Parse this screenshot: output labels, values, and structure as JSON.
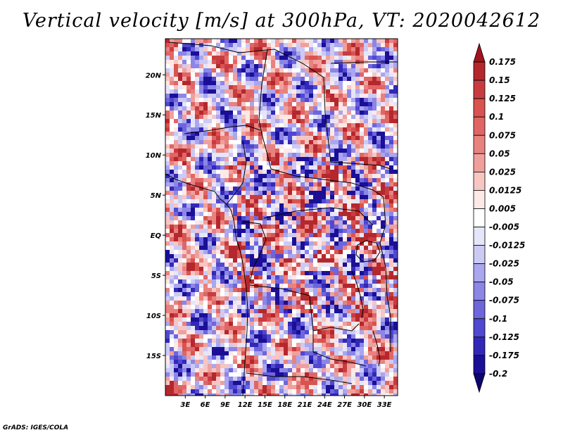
{
  "title": "Vertical velocity [m/s] at 300hPa, VT: 2020042612",
  "map": {
    "variable": "Vertical velocity",
    "units": "m/s",
    "level": "300hPa",
    "valid_time": "2020042612",
    "lon_range": [
      0,
      35
    ],
    "lat_range": [
      -20,
      24.5
    ],
    "lon_ticks": [
      "3E",
      "6E",
      "9E",
      "12E",
      "15E",
      "18E",
      "21E",
      "24E",
      "27E",
      "30E",
      "33E"
    ],
    "lon_tick_values": [
      3,
      6,
      9,
      12,
      15,
      18,
      21,
      24,
      27,
      30,
      33
    ],
    "lat_ticks": [
      "20N",
      "15N",
      "10N",
      "5N",
      "EQ",
      "5S",
      "10S",
      "15S"
    ],
    "lat_tick_values": [
      20,
      15,
      10,
      5,
      0,
      -5,
      -10,
      -15
    ]
  },
  "colorbar": {
    "labels": [
      "0.175",
      "0.15",
      "0.125",
      "0.1",
      "0.075",
      "0.05",
      "0.025",
      "0.0125",
      "0.005",
      "-0.005",
      "-0.0125",
      "-0.025",
      "-0.05",
      "-0.075",
      "-0.1",
      "-0.125",
      "-0.175",
      "-0.2"
    ],
    "colors": [
      "#a0141e",
      "#b4282d",
      "#c83c41",
      "#d9534f",
      "#e06666",
      "#e8827f",
      "#f0a09c",
      "#f7c6c3",
      "#fde9e7",
      "#ffffff",
      "#e6e6fa",
      "#cccaf5",
      "#aaa6ef",
      "#8c86e6",
      "#6e66dc",
      "#5048d0",
      "#3228b8",
      "#1a0f96",
      "#0c0470"
    ]
  },
  "credit": "GrADS: IGES/COLA"
}
